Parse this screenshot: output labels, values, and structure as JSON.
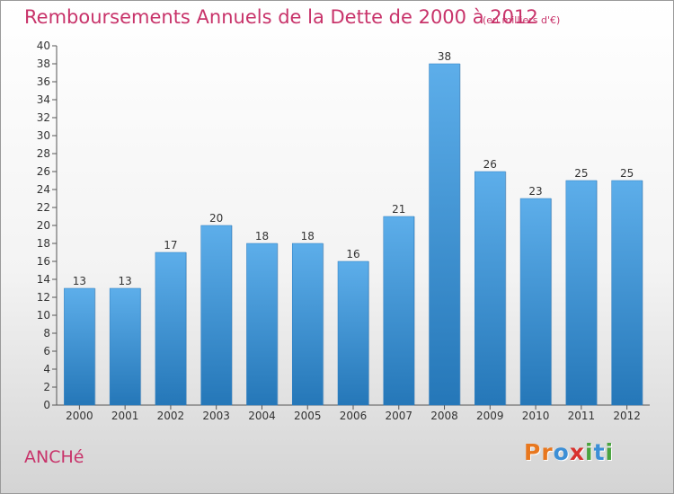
{
  "chart_data": {
    "type": "bar",
    "title": "Remboursements Annuels de la Dette de 2000 à 2012",
    "subtitle": "(en milliers d'€)",
    "categories": [
      "2000",
      "2001",
      "2002",
      "2003",
      "2004",
      "2005",
      "2006",
      "2007",
      "2008",
      "2009",
      "2010",
      "2011",
      "2012"
    ],
    "values": [
      13,
      13,
      17,
      20,
      18,
      18,
      16,
      21,
      38,
      26,
      23,
      25,
      25
    ],
    "ylim": [
      0,
      40
    ],
    "yticks": [
      0,
      2,
      4,
      6,
      8,
      10,
      12,
      14,
      16,
      18,
      20,
      22,
      24,
      26,
      28,
      30,
      32,
      34,
      36,
      38,
      40
    ],
    "grid": false,
    "legend": "none",
    "colors": {
      "bar_top": "#5daeea",
      "bar_bottom": "#2577b8",
      "title": "#c8336a"
    }
  },
  "footer": {
    "commune": "ANCHé",
    "logo_letters": [
      {
        "ch": "P",
        "color": "#e8771e"
      },
      {
        "ch": "r",
        "color": "#e8771e"
      },
      {
        "ch": "o",
        "color": "#3c8fd6"
      },
      {
        "ch": "x",
        "color": "#d8322e"
      },
      {
        "ch": "i",
        "color": "#4aa33f"
      },
      {
        "ch": "t",
        "color": "#3c8fd6"
      },
      {
        "ch": "i",
        "color": "#4aa33f"
      }
    ]
  }
}
